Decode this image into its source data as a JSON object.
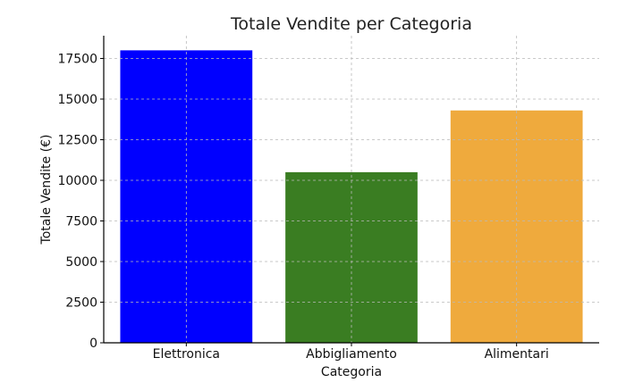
{
  "chart_data": {
    "type": "bar",
    "title": "Totale Vendite per Categoria",
    "xlabel": "Categoria",
    "ylabel": "Totale Vendite (€)",
    "categories": [
      "Elettronica",
      "Abbigliamento",
      "Alimentari"
    ],
    "values": [
      18000,
      10500,
      14300
    ],
    "colors": [
      "#0000ff",
      "#3a7d22",
      "#efaa3d"
    ],
    "yticks": [
      0,
      2500,
      5000,
      7500,
      10000,
      12500,
      15000,
      17500
    ],
    "ylim": [
      0,
      18900
    ],
    "grid": true
  }
}
